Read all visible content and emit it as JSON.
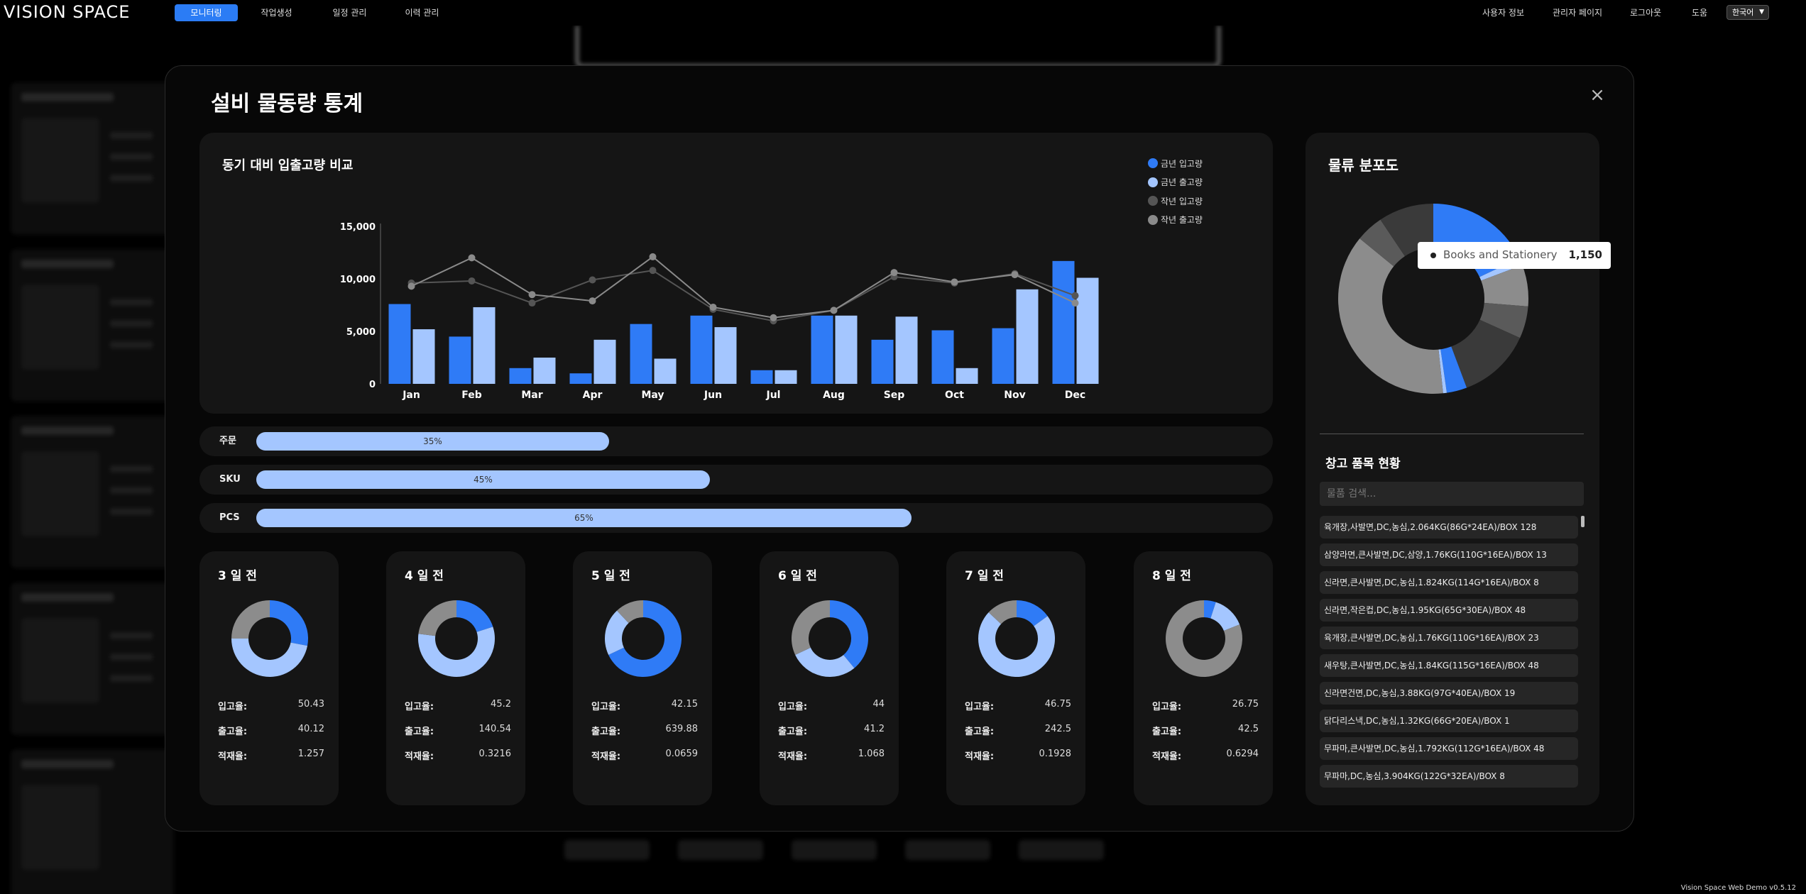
{
  "topnav": {
    "logo": "VISION SPACE",
    "tabs": [
      {
        "label": "모니터링",
        "active": true
      },
      {
        "label": "작업생성",
        "active": false
      },
      {
        "label": "일정 관리",
        "active": false
      },
      {
        "label": "이력 관리",
        "active": false
      }
    ],
    "right_links": [
      "사용자 정보",
      "관리자 페이지",
      "로그아웃",
      "도움"
    ],
    "language": "한국어"
  },
  "version": "Vision Space Web Demo v0.5.12",
  "modal": {
    "title": "설비 물동량 통계",
    "close_label": "×",
    "comparison_chart": {
      "title": "동기 대비 입출고량 비교"
    },
    "progress": [
      {
        "label": "주문",
        "value": 35,
        "text": "35%"
      },
      {
        "label": "SKU",
        "value": 45,
        "text": "45%"
      },
      {
        "label": "PCS",
        "value": 65,
        "text": "65%"
      }
    ],
    "stat_labels": {
      "in": "입고율:",
      "out": "출고율:",
      "stock": "적재율:"
    },
    "days": [
      {
        "title": "3 일 전",
        "in": "50.43",
        "out": "40.12",
        "stock": "1.257",
        "donut": [
          28,
          47,
          25
        ]
      },
      {
        "title": "4 일 전",
        "in": "45.2",
        "out": "140.54",
        "stock": "0.3216",
        "donut": [
          20,
          57,
          23
        ]
      },
      {
        "title": "5 일 전",
        "in": "42.15",
        "out": "639.88",
        "stock": "0.0659",
        "donut": [
          68,
          20,
          12
        ]
      },
      {
        "title": "6 일 전",
        "in": "44",
        "out": "41.2",
        "stock": "1.068",
        "donut": [
          39,
          29,
          32
        ]
      },
      {
        "title": "7 일 전",
        "in": "46.75",
        "out": "242.5",
        "stock": "0.1928",
        "donut": [
          15,
          72,
          13
        ]
      },
      {
        "title": "8 일 전",
        "in": "26.75",
        "out": "42.5",
        "stock": "0.6294",
        "donut": [
          5,
          14,
          81
        ]
      }
    ],
    "distribution": {
      "title": "물류 분포도",
      "tooltip_label": "Books and Stationery",
      "tooltip_value": "1,150"
    },
    "warehouse": {
      "title": "창고 품목 현황",
      "search_placeholder": "물품 검색...",
      "items": [
        "육개장,사발면,DC,농심,2.064KG(86G*24EA)/BOX 128",
        "삼양라면,큰사발면,DC,삼양,1.76KG(110G*16EA)/BOX 13",
        "신라면,큰사발면,DC,농심,1.824KG(114G*16EA)/BOX 8",
        "신라면,작은컵,DC,농심,1.95KG(65G*30EA)/BOX 48",
        "육개장,큰사발면,DC,농심,1.76KG(110G*16EA)/BOX 23",
        "새우탕,큰사발면,DC,농심,1.84KG(115G*16EA)/BOX 48",
        "신라면건면,DC,농심,3.88KG(97G*40EA)/BOX 19",
        "닭다리스낵,DC,농심,1.32KG(66G*20EA)/BOX 1",
        "무파마,큰사발면,DC,농심,1.792KG(112G*16EA)/BOX 48",
        "무파마,DC,농심,3.904KG(122G*32EA)/BOX 8"
      ]
    }
  },
  "colors": {
    "accent": "#2b7cf5",
    "blue": "#2f7bf6",
    "light_blue": "#a4c6ff",
    "dark_gray": "#555555",
    "gray": "#8a8a8a",
    "donut_gray": "#8c8c8c"
  },
  "chart_data": [
    {
      "type": "bar",
      "title": "동기 대비 입출고량 비교",
      "categories": [
        "Jan",
        "Feb",
        "Mar",
        "Apr",
        "May",
        "Jun",
        "Jul",
        "Aug",
        "Sep",
        "Oct",
        "Nov",
        "Dec"
      ],
      "ylim": [
        0,
        15000
      ],
      "yticks": [
        "0",
        "5,000",
        "10,000",
        "15,000"
      ],
      "legend": "top-right",
      "series": [
        {
          "name": "금년 입고량",
          "kind": "bar",
          "color": "#2f7bf6",
          "values": [
            7600,
            4500,
            1500,
            1000,
            5700,
            6500,
            1300,
            6500,
            4200,
            5100,
            5300,
            11700
          ]
        },
        {
          "name": "금년 출고량",
          "kind": "bar",
          "color": "#a4c6ff",
          "values": [
            5200,
            7300,
            2500,
            4200,
            2400,
            5400,
            1300,
            6500,
            6400,
            1500,
            9000,
            10100
          ]
        },
        {
          "name": "작년 입고량",
          "kind": "line",
          "color": "#555555",
          "values": [
            9600,
            9800,
            7700,
            9900,
            10800,
            7100,
            6000,
            7000,
            10200,
            9600,
            10500,
            8400
          ]
        },
        {
          "name": "작년 출고량",
          "kind": "line",
          "color": "#8a8a8a",
          "values": [
            9300,
            12000,
            8500,
            7900,
            12100,
            7300,
            6300,
            7000,
            10600,
            9700,
            10400,
            7700
          ]
        }
      ]
    },
    {
      "type": "pie",
      "title": "물류 분포도",
      "donut": true,
      "highlighted": {
        "label": "Books and Stationery",
        "value": 1150
      },
      "slices": [
        {
          "value": 1150,
          "color": "#2f7bf6"
        },
        {
          "value": 80,
          "color": "#a4c6ff"
        },
        {
          "value": 450,
          "color": "#8c8c8c"
        },
        {
          "value": 350,
          "color": "#5a5a5a"
        },
        {
          "value": 800,
          "color": "#3a3a3a"
        },
        {
          "value": 220,
          "color": "#2f7bf6"
        },
        {
          "value": 40,
          "color": "#a4c6ff"
        },
        {
          "value": 2400,
          "color": "#8c8c8c"
        },
        {
          "value": 300,
          "color": "#5a5a5a"
        },
        {
          "value": 600,
          "color": "#3a3a3a"
        }
      ]
    }
  ]
}
